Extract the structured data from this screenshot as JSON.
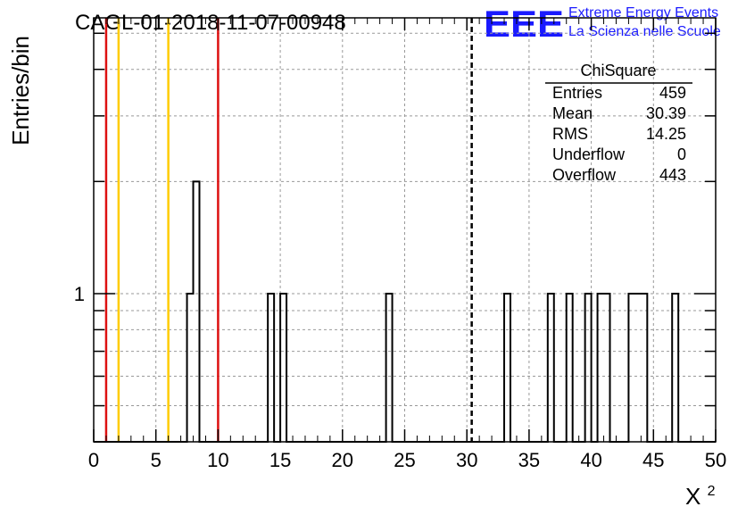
{
  "chart_data": {
    "type": "histogram",
    "title": "CAGL-01-2018-11-07-00948",
    "xlabel": "X²",
    "xlabel_base": "X",
    "xlabel_sup": "2",
    "ylabel": "Entries/bin",
    "xlim": [
      0,
      50
    ],
    "ylim": [
      0.4,
      5.5
    ],
    "yscale": "log",
    "grid": true,
    "x_ticks": [
      "0",
      "5",
      "10",
      "15",
      "20",
      "25",
      "30",
      "35",
      "40",
      "45",
      "50"
    ],
    "y_tick_labels": [
      "1"
    ],
    "bin_width": 0.5,
    "bins_x_low": [
      7.5,
      8.0,
      14.0,
      15.0,
      23.5,
      33.0,
      36.5,
      38.0,
      39.5,
      40.5,
      41.0,
      43.0,
      43.5,
      44.0,
      46.5
    ],
    "bins_counts": [
      1,
      2,
      1,
      1,
      1,
      1,
      1,
      1,
      1,
      1,
      1,
      1,
      1,
      1,
      1
    ],
    "reference_lines": [
      {
        "x": 1.0,
        "color": "#dd1111",
        "style": "solid"
      },
      {
        "x": 2.0,
        "color": "#ffcc00",
        "style": "solid"
      },
      {
        "x": 6.0,
        "color": "#ffcc00",
        "style": "solid"
      },
      {
        "x": 10.0,
        "color": "#dd1111",
        "style": "solid"
      },
      {
        "x": 30.39,
        "color": "#000000",
        "style": "dashed"
      }
    ],
    "stats_box": {
      "title": "ChiSquare",
      "rows": [
        {
          "label": "Entries",
          "value": "459"
        },
        {
          "label": "Mean",
          "value": "30.39"
        },
        {
          "label": "RMS",
          "value": "14.25"
        },
        {
          "label": "Underflow",
          "value": "0"
        },
        {
          "label": "Overflow",
          "value": "443"
        }
      ]
    }
  },
  "logo": {
    "text": "EEE",
    "line1": "Extreme Energy Events",
    "line2": "La Scienza nelle Scuole",
    "color": "#1a1aff"
  }
}
